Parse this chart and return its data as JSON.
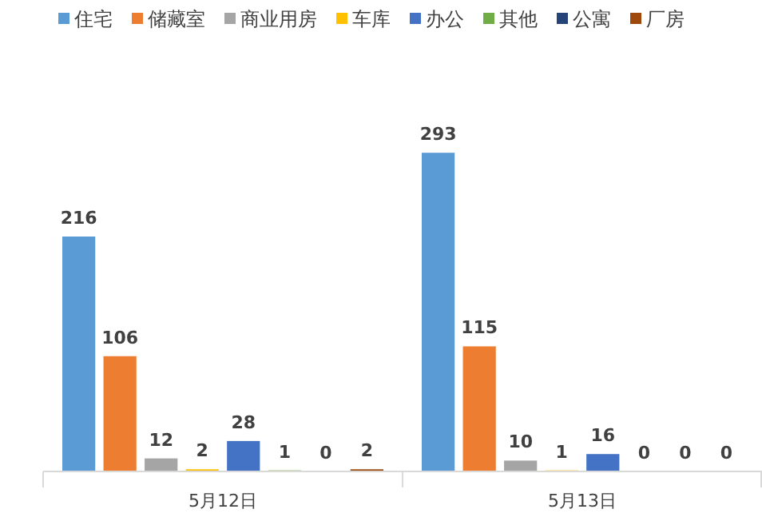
{
  "chart_data": {
    "type": "bar",
    "categories": [
      "5月12日",
      "5月13日"
    ],
    "series": [
      {
        "name": "住宅",
        "color": "#5b9bd5",
        "values": [
          216,
          293
        ]
      },
      {
        "name": "储藏室",
        "color": "#ed7d31",
        "values": [
          106,
          115
        ]
      },
      {
        "name": "商业用房",
        "color": "#a5a5a5",
        "values": [
          12,
          10
        ]
      },
      {
        "name": "车库",
        "color": "#ffc000",
        "values": [
          2,
          1
        ]
      },
      {
        "name": "办公",
        "color": "#4472c4",
        "values": [
          28,
          16
        ]
      },
      {
        "name": "其他",
        "color": "#70ad47",
        "values": [
          1,
          0
        ]
      },
      {
        "name": "公寓",
        "color": "#264478",
        "values": [
          0,
          0
        ]
      },
      {
        "name": "厂房",
        "color": "#9e480e",
        "values": [
          2,
          0
        ]
      }
    ],
    "data_labels": true,
    "legend": "top",
    "grid": false
  }
}
